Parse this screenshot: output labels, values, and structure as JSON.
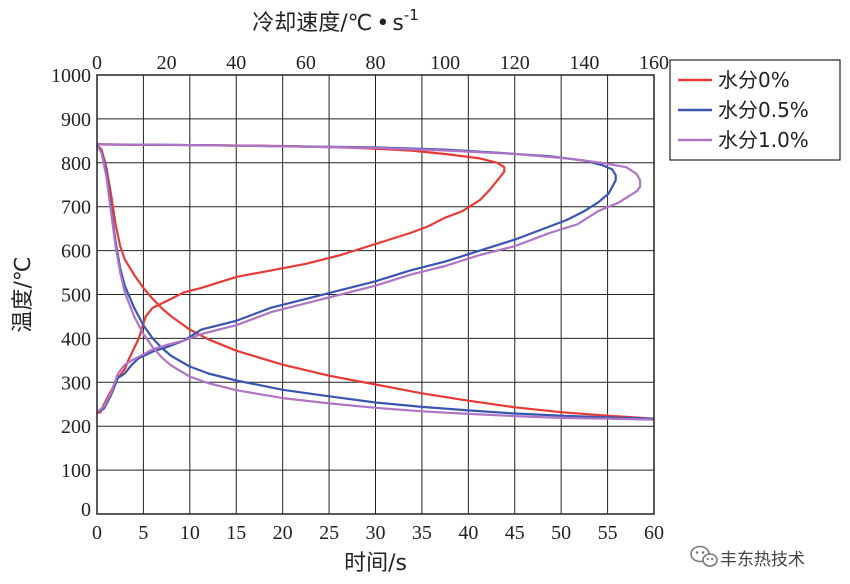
{
  "chart_data": {
    "type": "line",
    "title": "",
    "xlabel": "时间/s",
    "ylabel": "温度/℃",
    "x2label": "冷却速度/℃",
    "x2label_sup": "-1",
    "x2label_mid": "s",
    "xlim": [
      0,
      60
    ],
    "x2lim": [
      0,
      160
    ],
    "ylim": [
      0,
      1000
    ],
    "xticks": [
      0,
      5,
      10,
      15,
      20,
      25,
      30,
      35,
      40,
      45,
      50,
      55,
      60
    ],
    "x2ticks": [
      0,
      20,
      40,
      60,
      80,
      100,
      120,
      140,
      160
    ],
    "yticks": [
      100,
      200,
      300,
      400,
      500,
      600,
      700,
      800,
      900,
      1000
    ],
    "grid": true,
    "legend_position": "right-top",
    "series": [
      {
        "name": "水分0%",
        "color": "#e83a34",
        "cooling_curve": {
          "x": [
            0,
            0.5,
            1,
            1.5,
            2,
            2.5,
            3,
            4,
            5,
            6,
            7,
            8,
            10,
            12,
            15,
            20,
            25,
            30,
            35,
            40,
            45,
            50,
            55,
            60
          ],
          "y": [
            840,
            830,
            790,
            730,
            660,
            610,
            580,
            545,
            515,
            490,
            468,
            450,
            420,
            398,
            372,
            340,
            315,
            295,
            275,
            258,
            243,
            232,
            224,
            217
          ]
        },
        "cooling_rate_curve": {
          "rate": [
            0,
            1,
            2,
            4,
            6,
            8,
            9,
            12,
            14,
            16,
            20,
            25,
            30,
            40,
            50,
            60,
            70,
            80,
            90,
            95,
            100,
            105,
            110,
            113,
            115,
            116,
            117,
            117,
            115,
            110,
            100,
            90,
            75,
            55,
            35,
            10,
            0
          ],
          "y": [
            230,
            232,
            250,
            280,
            310,
            330,
            350,
            400,
            450,
            470,
            485,
            505,
            515,
            540,
            555,
            570,
            590,
            615,
            640,
            655,
            675,
            690,
            715,
            740,
            760,
            770,
            780,
            790,
            800,
            810,
            820,
            828,
            834,
            838,
            840,
            841,
            842
          ]
        }
      },
      {
        "name": "水分0.5%",
        "color": "#3a56b0",
        "cooling_curve": {
          "x": [
            0,
            0.5,
            1,
            1.5,
            2,
            2.5,
            3,
            4,
            5,
            6,
            7,
            8,
            10,
            12,
            15,
            20,
            25,
            30,
            35,
            40,
            45,
            50,
            55,
            60
          ],
          "y": [
            840,
            825,
            780,
            700,
            620,
            560,
            520,
            470,
            430,
            400,
            378,
            360,
            336,
            320,
            304,
            283,
            268,
            254,
            244,
            236,
            229,
            224,
            220,
            217
          ]
        },
        "cooling_rate_curve": {
          "rate": [
            0,
            2,
            4,
            6,
            8,
            10,
            12,
            16,
            20,
            25,
            30,
            40,
            50,
            60,
            70,
            80,
            90,
            100,
            110,
            120,
            130,
            135,
            140,
            144,
            147,
            148,
            149,
            149,
            148,
            145,
            140,
            130,
            115,
            100,
            80,
            50,
            20,
            0
          ],
          "y": [
            232,
            240,
            270,
            310,
            320,
            340,
            355,
            370,
            380,
            395,
            420,
            440,
            470,
            490,
            510,
            530,
            555,
            575,
            600,
            625,
            655,
            670,
            690,
            710,
            730,
            745,
            760,
            772,
            785,
            795,
            805,
            815,
            823,
            830,
            835,
            838,
            841,
            842
          ]
        }
      },
      {
        "name": "水分1.0%",
        "color": "#b074c4",
        "cooling_curve": {
          "x": [
            0,
            0.5,
            1,
            1.5,
            2,
            2.5,
            3,
            4,
            5,
            6,
            7,
            8,
            10,
            12,
            15,
            20,
            25,
            30,
            35,
            40,
            45,
            50,
            55,
            60
          ],
          "y": [
            840,
            822,
            770,
            690,
            610,
            550,
            505,
            450,
            410,
            380,
            356,
            338,
            313,
            298,
            282,
            264,
            252,
            242,
            234,
            228,
            223,
            219,
            217,
            215
          ]
        },
        "cooling_rate_curve": {
          "rate": [
            0,
            2,
            4,
            6,
            8,
            10,
            12,
            16,
            20,
            25,
            30,
            40,
            50,
            60,
            70,
            80,
            90,
            100,
            110,
            120,
            130,
            138,
            144,
            150,
            153,
            155,
            156,
            156,
            155,
            152,
            145,
            135,
            120,
            100,
            80,
            50,
            20,
            0
          ],
          "y": [
            232,
            245,
            275,
            320,
            340,
            350,
            358,
            375,
            385,
            395,
            410,
            430,
            460,
            480,
            500,
            520,
            545,
            565,
            590,
            610,
            640,
            660,
            690,
            710,
            725,
            735,
            745,
            760,
            775,
            790,
            800,
            810,
            820,
            828,
            834,
            838,
            841,
            842
          ]
        }
      }
    ]
  },
  "watermark": {
    "icon": "wechat-icon",
    "text": "丰东热技术"
  }
}
